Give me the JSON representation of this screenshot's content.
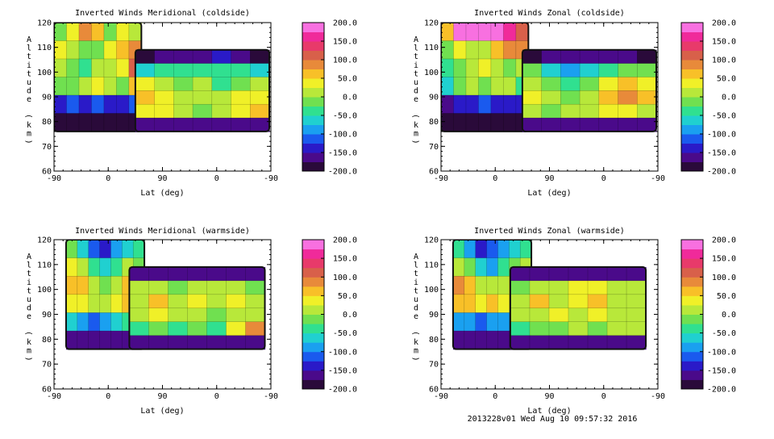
{
  "chart_data": [
    {
      "type": "heatmap",
      "title": "Inverted Winds Meridional (coldside)",
      "xlabel": "Lat (deg)",
      "ylabel": "Altitude (km)",
      "x_ticks": [
        "-90",
        "0",
        "90",
        "0",
        "-90"
      ],
      "y_ticks": [
        "60",
        "70",
        "80",
        "90",
        "100",
        "110",
        "120"
      ],
      "ylim": [
        60,
        120
      ],
      "colorbar": {
        "ticks": [
          "200.0",
          "150.0",
          "100.0",
          "50.0",
          "0.0",
          "-50.0",
          "-100.0",
          "-150.0",
          "-200.0"
        ],
        "range": [
          -200,
          200
        ]
      },
      "regions": [
        {
          "lat": [
            -90,
            55
          ],
          "alt": [
            76,
            120
          ],
          "field": [
            [
              -5,
              40,
              80,
              70,
              -10,
              40,
              20
            ],
            [
              30,
              10,
              -10,
              -20,
              30,
              60,
              90
            ],
            [
              10,
              -20,
              -40,
              0,
              20,
              40,
              120
            ],
            [
              -20,
              -10,
              10,
              30,
              10,
              -10,
              60
            ],
            [
              -150,
              -120,
              -130,
              -110,
              -140,
              -150,
              -120
            ],
            [
              -180,
              -180,
              -180,
              -180,
              -180,
              -180,
              -180
            ]
          ]
        },
        {
          "lat": [
            135,
            -90
          ],
          "alt": [
            76,
            109
          ],
          "field": [
            [
              -180,
              -170,
              -160,
              -170,
              -150,
              -170,
              -180
            ],
            [
              -60,
              -40,
              -30,
              -40,
              -30,
              -40,
              -60
            ],
            [
              30,
              10,
              -10,
              10,
              -40,
              -20,
              10
            ],
            [
              50,
              30,
              10,
              20,
              10,
              30,
              40
            ],
            [
              40,
              30,
              20,
              -10,
              20,
              30,
              60
            ],
            [
              -170,
              -160,
              -160,
              -160,
              -160,
              -160,
              -170
            ]
          ]
        }
      ]
    },
    {
      "type": "heatmap",
      "title": "Inverted Winds Zonal (coldside)",
      "xlabel": "Lat (deg)",
      "ylabel": "Altitude (km)",
      "x_ticks": [
        "-90",
        "0",
        "90",
        "0",
        "-90"
      ],
      "y_ticks": [
        "60",
        "70",
        "80",
        "90",
        "100",
        "110",
        "120"
      ],
      "ylim": [
        60,
        120
      ],
      "colorbar": {
        "ticks": [
          "200.0",
          "150.0",
          "100.0",
          "50.0",
          "0.0",
          "-50.0",
          "-100.0",
          "-150.0",
          "-200.0"
        ],
        "range": [
          -200,
          200
        ]
      },
      "regions": [
        {
          "lat": [
            -90,
            55
          ],
          "alt": [
            76,
            120
          ],
          "field": [
            [
              60,
              180,
              190,
              190,
              180,
              170,
              120
            ],
            [
              -20,
              40,
              10,
              20,
              60,
              80,
              80
            ],
            [
              -40,
              -10,
              20,
              40,
              10,
              -20,
              0
            ],
            [
              -60,
              -20,
              10,
              -10,
              20,
              10,
              -30
            ],
            [
              -160,
              -130,
              -140,
              -120,
              -140,
              -150,
              -140
            ],
            [
              -180,
              -180,
              -180,
              -180,
              -180,
              -180,
              -180
            ]
          ]
        },
        {
          "lat": [
            135,
            -90
          ],
          "alt": [
            76,
            109
          ],
          "field": [
            [
              -180,
              -170,
              -170,
              -170,
              -160,
              -170,
              -180
            ],
            [
              -20,
              -60,
              -80,
              -60,
              -30,
              -10,
              -20
            ],
            [
              20,
              -10,
              -40,
              -10,
              40,
              70,
              40
            ],
            [
              40,
              0,
              -20,
              10,
              60,
              90,
              50
            ],
            [
              10,
              -20,
              0,
              20,
              30,
              40,
              20
            ],
            [
              -170,
              -160,
              -160,
              -160,
              -160,
              -160,
              -170
            ]
          ]
        }
      ]
    },
    {
      "type": "heatmap",
      "title": "Inverted Winds Meridional (warmside)",
      "xlabel": "Lat (deg)",
      "ylabel": "Altitude (km)",
      "x_ticks": [
        "-90",
        "0",
        "90",
        "0",
        "-90"
      ],
      "y_ticks": [
        "60",
        "70",
        "80",
        "90",
        "100",
        "110",
        "120"
      ],
      "ylim": [
        60,
        120
      ],
      "colorbar": {
        "ticks": [
          "200.0",
          "150.0",
          "100.0",
          "50.0",
          "0.0",
          "-50.0",
          "-100.0",
          "-150.0",
          "-200.0"
        ],
        "range": [
          -200,
          200
        ]
      },
      "regions": [
        {
          "lat": [
            -70,
            60
          ],
          "alt": [
            76,
            120
          ],
          "field": [
            [
              -20,
              -60,
              -120,
              -140,
              -90,
              -60,
              -40
            ],
            [
              40,
              0,
              -40,
              -70,
              -30,
              0,
              -20
            ],
            [
              70,
              50,
              0,
              -20,
              20,
              50,
              30
            ],
            [
              30,
              40,
              20,
              0,
              30,
              60,
              20
            ],
            [
              -60,
              -80,
              -110,
              -90,
              -60,
              -40,
              -60
            ],
            [
              -170,
              -170,
              -170,
              -170,
              -170,
              -170,
              -170
            ]
          ]
        },
        {
          "lat": [
            75,
            100
          ],
          "alt": [
            79,
            107
          ],
          "field": [
            [
              -80,
              -30,
              -80
            ],
            [
              -20,
              30,
              -20
            ],
            [
              -60,
              -10,
              -60
            ],
            [
              -150,
              -150,
              -150
            ]
          ]
        },
        {
          "lat": [
            125,
            -80
          ],
          "alt": [
            76,
            109
          ],
          "field": [
            [
              -170,
              -160,
              -160,
              -160,
              -160,
              -160,
              -170
            ],
            [
              0,
              20,
              -10,
              0,
              10,
              0,
              -20
            ],
            [
              20,
              60,
              10,
              40,
              20,
              30,
              10
            ],
            [
              0,
              30,
              10,
              20,
              -10,
              10,
              0
            ],
            [
              -30,
              -20,
              -30,
              -10,
              -40,
              40,
              80
            ],
            [
              -170,
              -160,
              -160,
              -160,
              -160,
              -160,
              -170
            ]
          ]
        }
      ]
    },
    {
      "type": "heatmap",
      "title": "Inverted Winds Zonal (warmside)",
      "xlabel": "Lat (deg)",
      "ylabel": "Altitude (km)",
      "x_ticks": [
        "-90",
        "0",
        "90",
        "0",
        "-90"
      ],
      "y_ticks": [
        "60",
        "70",
        "80",
        "90",
        "100",
        "110",
        "120"
      ],
      "ylim": [
        60,
        120
      ],
      "colorbar": {
        "ticks": [
          "200.0",
          "150.0",
          "100.0",
          "50.0",
          "0.0",
          "-50.0",
          "-100.0",
          "-150.0",
          "-200.0"
        ],
        "range": [
          -200,
          200
        ]
      },
      "regions": [
        {
          "lat": [
            -70,
            60
          ],
          "alt": [
            76,
            120
          ],
          "field": [
            [
              -40,
              -80,
              -130,
              -110,
              -80,
              -60,
              -40
            ],
            [
              10,
              -20,
              -60,
              -80,
              -40,
              -20,
              0
            ],
            [
              80,
              50,
              0,
              10,
              20,
              30,
              10
            ],
            [
              60,
              70,
              40,
              60,
              30,
              40,
              20
            ],
            [
              -80,
              -100,
              -120,
              -100,
              -90,
              -80,
              -70
            ],
            [
              -170,
              -170,
              -170,
              -170,
              -170,
              -170,
              -170
            ]
          ]
        },
        {
          "lat": [
            80,
            100
          ],
          "alt": [
            79,
            107
          ],
          "field": [
            [
              -60,
              -20,
              -60
            ],
            [
              -10,
              20,
              -10
            ],
            [
              -50,
              0,
              -50
            ],
            [
              -150,
              -150,
              -150
            ]
          ]
        },
        {
          "lat": [
            115,
            -70
          ],
          "alt": [
            76,
            109
          ],
          "field": [
            [
              -170,
              -160,
              -160,
              -160,
              -160,
              -160,
              -170
            ],
            [
              -20,
              0,
              20,
              40,
              30,
              20,
              0
            ],
            [
              10,
              50,
              10,
              40,
              60,
              20,
              10
            ],
            [
              0,
              20,
              40,
              10,
              30,
              20,
              0
            ],
            [
              -40,
              -10,
              -20,
              0,
              -20,
              10,
              20
            ],
            [
              -170,
              -160,
              -160,
              -160,
              -160,
              -160,
              -170
            ]
          ]
        }
      ]
    }
  ],
  "footer": "2013228v01 Wed Aug 10 09:57:32 2016"
}
